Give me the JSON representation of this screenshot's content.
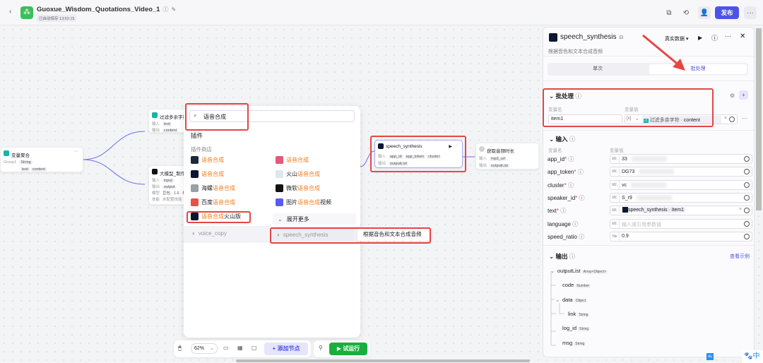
{
  "header": {
    "title": "Guoxue_Wisdom_Quotations_Video_1",
    "autosave": "已自动保存 13:52:15",
    "publish": "发布",
    "more": "···"
  },
  "nodes": {
    "var_agg": {
      "title": "变量聚合",
      "group": "Group1",
      "tags": [
        "String",
        "text",
        "content"
      ]
    },
    "filter": {
      "title": "过滤多余字符",
      "in_label": "输入",
      "out_label": "输出",
      "in": "text",
      "out": "content"
    },
    "llm": {
      "title": "大模型_制作标题",
      "in_label": "输入",
      "out_label": "输出",
      "model_label": "模型",
      "skill_label": "技能",
      "in": "input",
      "out": "output",
      "model": "豆包 · 1.6 · 模型",
      "skill": "未配置技能"
    },
    "speech": {
      "title": "speech_synthesis",
      "in_label": "输入",
      "out_label": "输出",
      "inputs": [
        "app_id",
        "app_token",
        "cluster"
      ],
      "output": "outputList"
    },
    "duration": {
      "title": "获取音频时长",
      "in_label": "输入",
      "out_label": "输出",
      "in": "mp3_url",
      "out": "outputList"
    }
  },
  "popup": {
    "search": "语音合成",
    "section": "插件",
    "store": "插件商店",
    "items": [
      {
        "pre": "",
        "hl": "语音合成",
        "post": "",
        "color": "#1b2a3a"
      },
      {
        "pre": "",
        "hl": "语音合成",
        "post": "",
        "color": "#e05a7a"
      },
      {
        "pre": "",
        "hl": "语音合成",
        "post": "",
        "color": "#0b1630"
      },
      {
        "pre": "火山",
        "hl": "语音合成",
        "post": "",
        "color": "#dfe6ee"
      },
      {
        "pre": "海螺",
        "hl": "语音合成",
        "post": "",
        "color": "#9aa0a8"
      },
      {
        "pre": "微软",
        "hl": "语音合成",
        "post": "",
        "color": "#111111"
      },
      {
        "pre": "百度",
        "hl": "语音合成",
        "post": "",
        "color": "#e8504a"
      },
      {
        "pre": "图片",
        "hl": "语音合成",
        "post": "视频",
        "color": "#5a5cf0"
      },
      {
        "pre": "",
        "hl": "语音合成",
        "post": "火山版",
        "color": "#0b1630"
      }
    ],
    "expand": "展开更多",
    "tools": [
      "voice_copy",
      "speech_synthesis"
    ],
    "tooltip": "根据音色和文本合成音频"
  },
  "toolbar": {
    "zoom": "62%",
    "add_node": "添加节点",
    "test_run": "试运行"
  },
  "panel": {
    "title": "speech_synthesis",
    "desc": "根据音色和文本合成音频",
    "data_mode": "真实数据",
    "tabs": [
      "单次",
      "批处理"
    ],
    "active_tab": 1,
    "batch": {
      "title": "批处理",
      "name_label": "变量名",
      "value_label": "变量值",
      "name": "item1",
      "type": "[x]",
      "ref_node": "过滤多余字符",
      "ref_sep": " · ",
      "ref_var": "content"
    },
    "input": {
      "title": "输入",
      "name_label": "变量名",
      "value_label": "变量值",
      "fields": [
        {
          "name": "app_id",
          "req": "*",
          "type": "str.",
          "value": "33"
        },
        {
          "name": "app_token",
          "req": "*",
          "type": "str.",
          "value": "DG73"
        },
        {
          "name": "cluster",
          "req": "*",
          "type": "str.",
          "value": "vc"
        },
        {
          "name": "speaker_id",
          "req": "*",
          "type": "str.",
          "value": "S_r9"
        },
        {
          "name": "text",
          "req": "*",
          "type": "str.",
          "value": "speech_synthesis · item1"
        },
        {
          "name": "language",
          "req": "",
          "type": "str.",
          "placeholder": "输入或引用参数值"
        },
        {
          "name": "speed_ratio",
          "req": "",
          "type": "№",
          "value": "0.9"
        }
      ]
    },
    "output": {
      "title": "输出",
      "example": "查看示例",
      "tree": [
        {
          "name": "outputList",
          "type": "Array<Object>"
        },
        {
          "name": "code",
          "type": "Number"
        },
        {
          "name": "data",
          "type": "Object"
        },
        {
          "name": "link",
          "type": "String"
        },
        {
          "name": "log_id",
          "type": "String"
        },
        {
          "name": "msg",
          "type": "String"
        }
      ]
    }
  },
  "ime": {
    "label": "中",
    "du": "du"
  },
  "colors": {
    "accent": "#4d53e8",
    "highlight": "#f27a1c",
    "annotation": "#e64545",
    "run": "#1aaf3c"
  }
}
